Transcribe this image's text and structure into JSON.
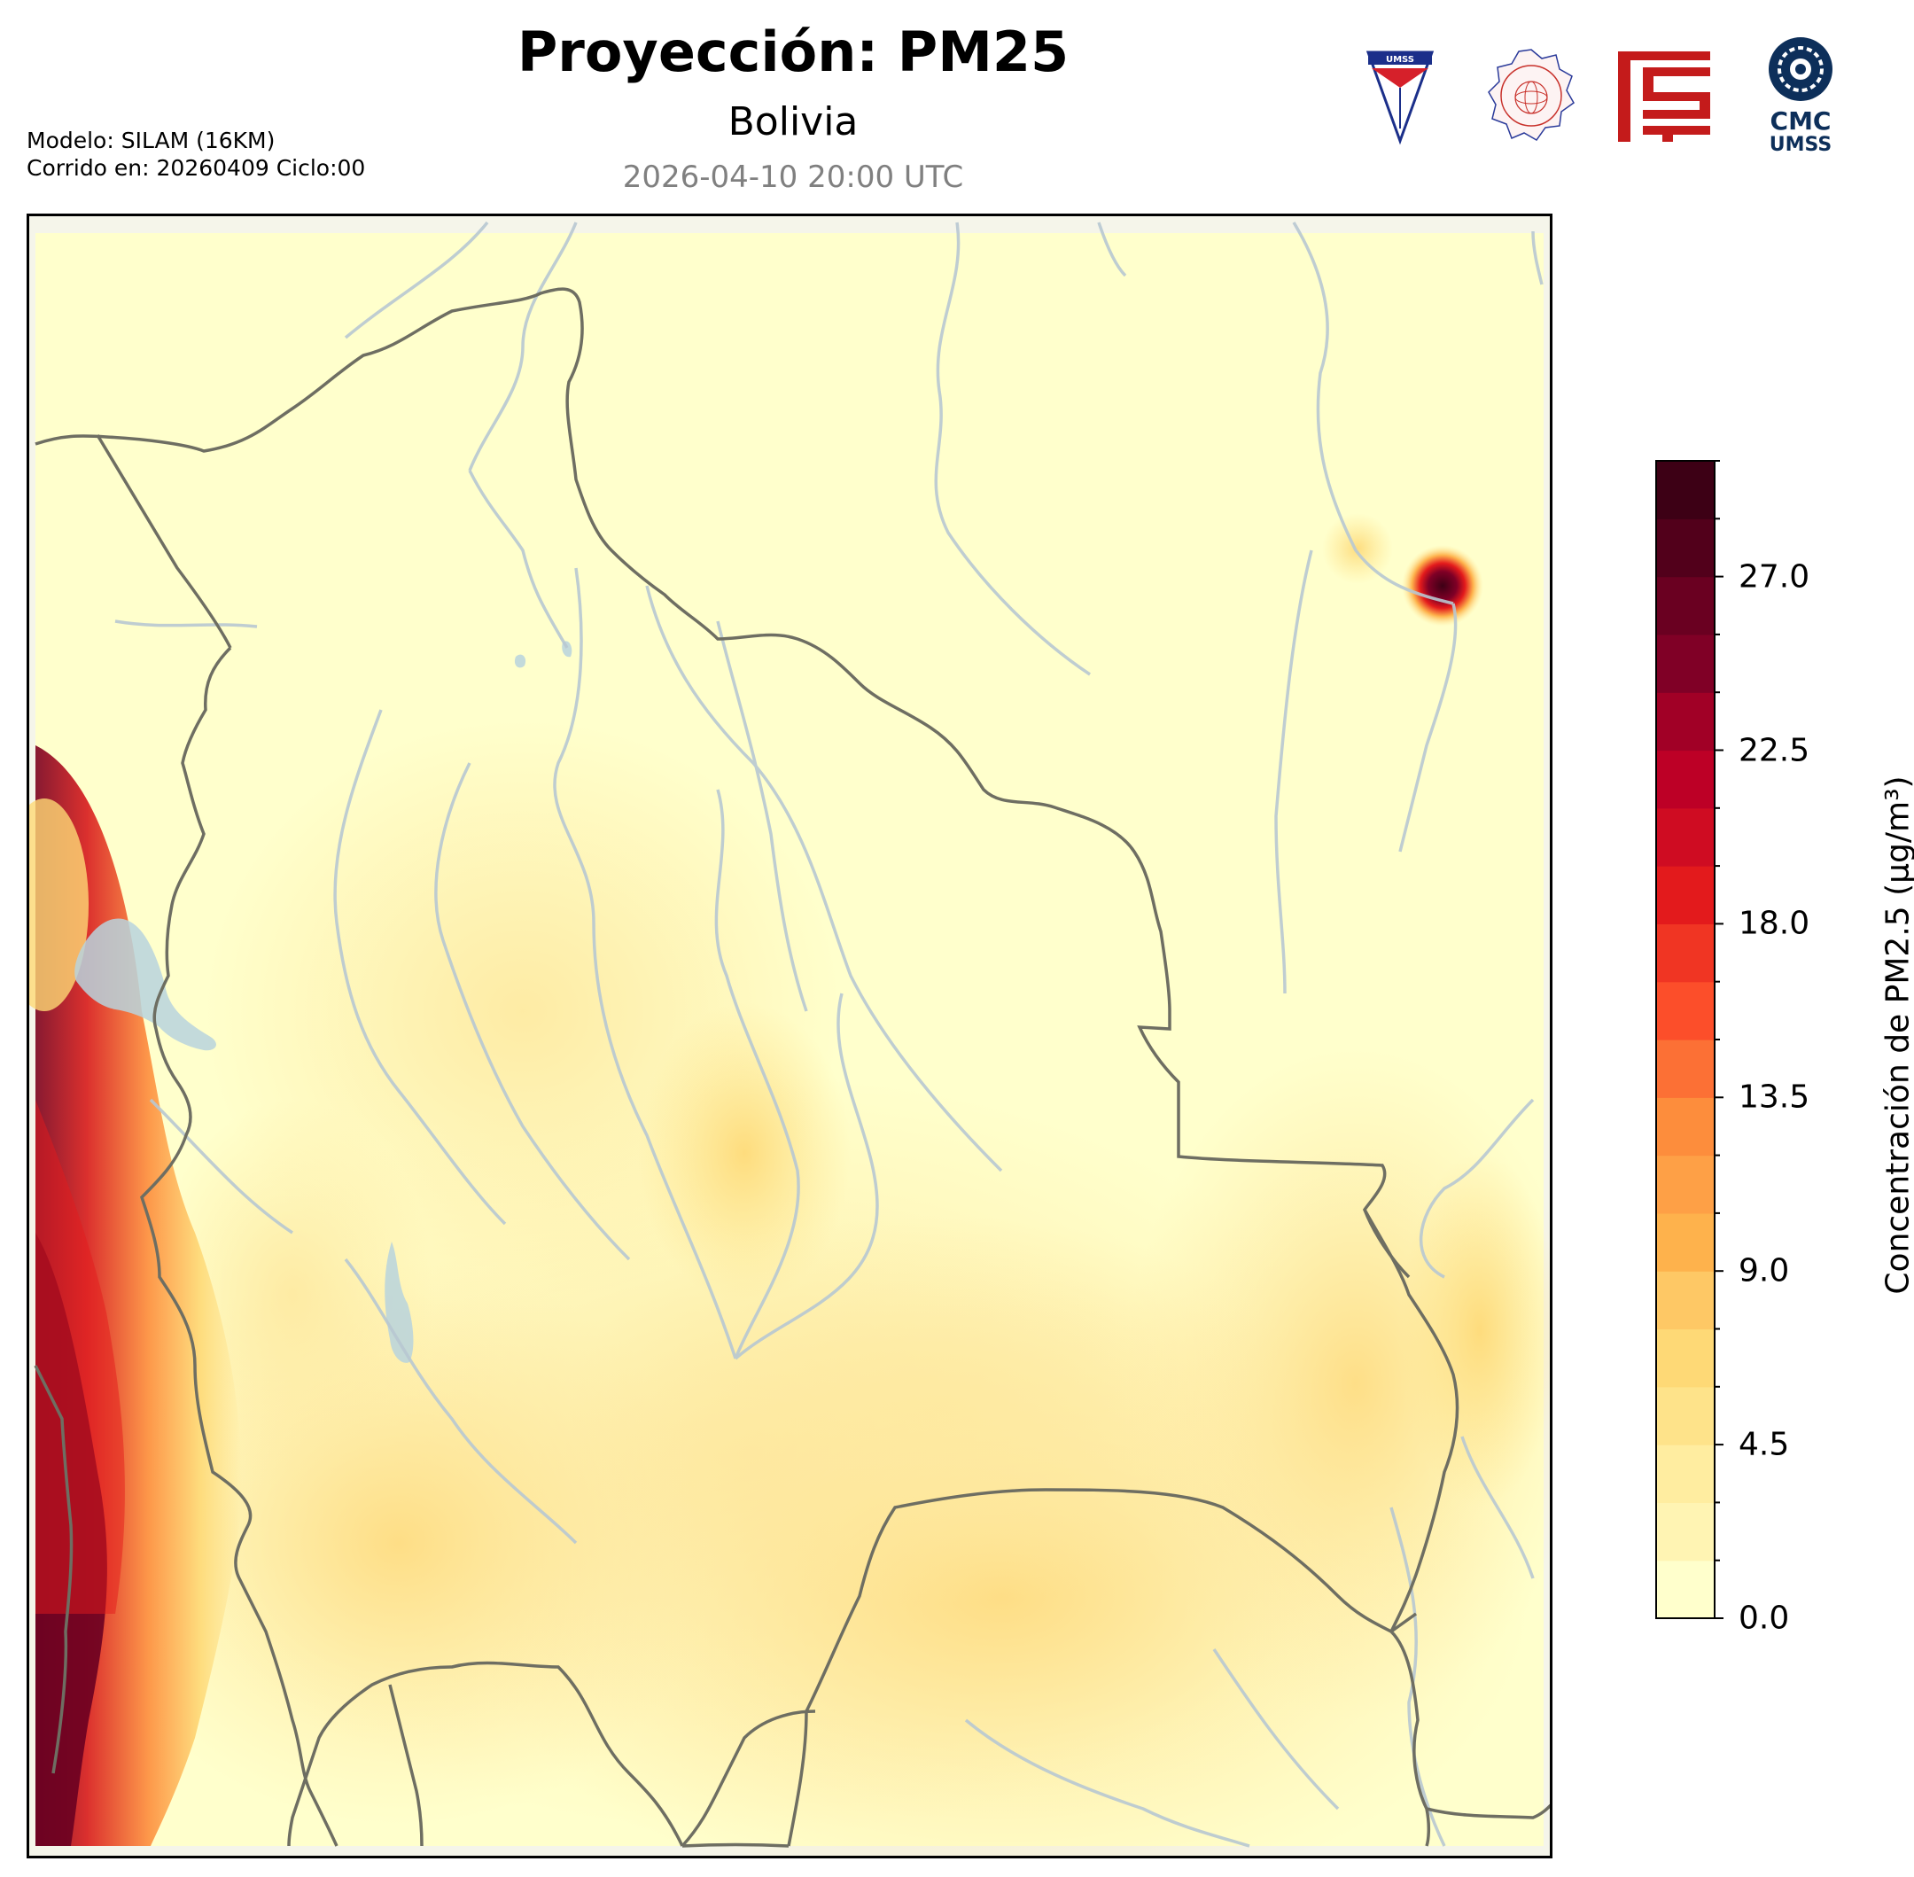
{
  "header": {
    "title": "Proyección: PM25",
    "subtitle": "Bolivia",
    "datetime": "2026-04-10 20:00 UTC"
  },
  "meta": {
    "model": "Modelo: SILAM (16KM)",
    "run": "Corrido en: 20260409 Ciclo:00"
  },
  "logos": [
    {
      "name": "umss-shield-logo",
      "text": "UMSS"
    },
    {
      "name": "departamento-fisica-seal-logo",
      "text": "DEPARTAMENTO DE FÍSICA"
    },
    {
      "name": "red-fcyt-logo"
    },
    {
      "name": "cmc-umss-logo",
      "line1": "CMC",
      "line2": "UMSS"
    }
  ],
  "colorbar": {
    "label": "Concentración de PM2.5 (µg/m³)",
    "min": 0.0,
    "max": 30.0,
    "step": 1.5,
    "ticks": [
      "0.0",
      "4.5",
      "9.0",
      "13.5",
      "18.0",
      "22.5",
      "27.0"
    ],
    "tick_values": [
      0,
      4.5,
      9,
      13.5,
      18,
      22.5,
      27
    ],
    "colors": [
      "#ffffcc",
      "#fff4b3",
      "#ffeda0",
      "#fee38a",
      "#fed976",
      "#fec865",
      "#feb24c",
      "#fea046",
      "#fd8d3c",
      "#fc7035",
      "#fc4e2a",
      "#f03523",
      "#e31a1c",
      "#cf0c22",
      "#bd0026",
      "#a10026",
      "#800026",
      "#6a0021",
      "#52001b",
      "#3d0015"
    ]
  },
  "map": {
    "region": "Bolivia",
    "hotspots": [
      {
        "label": "NE fire hotspot",
        "value": 30
      },
      {
        "label": "Andes western border",
        "value": 27
      }
    ]
  }
}
